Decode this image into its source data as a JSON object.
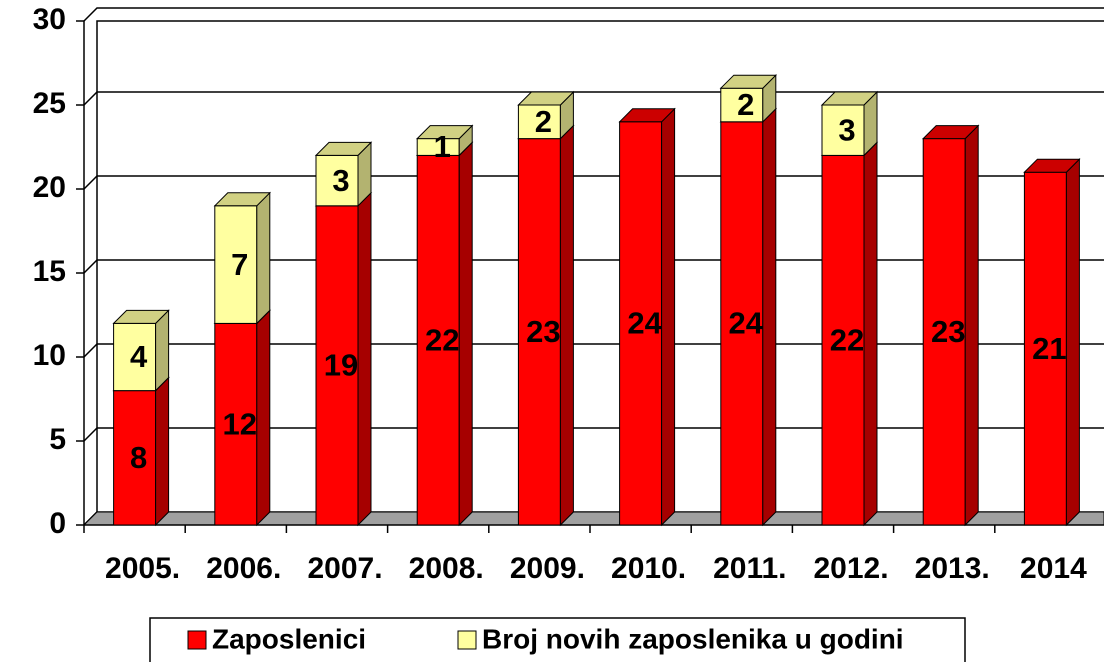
{
  "chart_data": {
    "type": "bar3d_stacked",
    "categories": [
      "2005.",
      "2006.",
      "2007.",
      "2008.",
      "2009.",
      "2010.",
      "2011.",
      "2012.",
      "2013.",
      "2014"
    ],
    "series": [
      {
        "name": "Zaposlenici",
        "color": "#ff0000",
        "values": [
          8,
          12,
          19,
          22,
          23,
          24,
          24,
          22,
          23,
          21
        ]
      },
      {
        "name": "Broj novih zaposlenika u godini",
        "color": "#ffffa0",
        "values": [
          4,
          7,
          3,
          1,
          2,
          null,
          2,
          3,
          null,
          null
        ]
      }
    ],
    "ylim": [
      0,
      30
    ],
    "yticks": [
      0,
      5,
      10,
      15,
      20,
      25,
      30
    ],
    "grid": true,
    "legend": "bottom"
  }
}
